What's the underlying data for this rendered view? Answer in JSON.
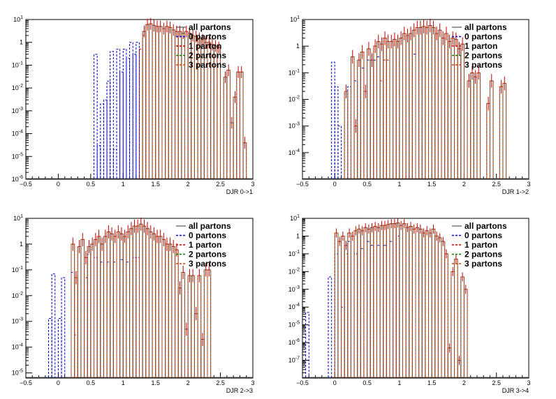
{
  "chart_data": [
    {
      "type": "histogram",
      "xlabel": "DJR 0->1",
      "xlim": [
        -0.5,
        3
      ],
      "log_y": true,
      "ylim_exp": [
        -6,
        1
      ],
      "x_ticks": [
        "−0.5",
        "0",
        "0.5",
        "1",
        "1.5",
        "2",
        "2.5",
        "3"
      ],
      "y_ticks": [
        {
          "base": "10",
          "exp": "1"
        },
        {
          "base": "1",
          "exp": ""
        },
        {
          "base": "10",
          "exp": "-1"
        },
        {
          "base": "10",
          "exp": "-2"
        },
        {
          "base": "10",
          "exp": "-3"
        },
        {
          "base": "10",
          "exp": "-4"
        },
        {
          "base": "10",
          "exp": "-5"
        },
        {
          "base": "10",
          "exp": "-6"
        }
      ],
      "legend": [
        "all partons",
        "0 partons",
        "1 parton",
        "2 partons",
        "3 partons"
      ],
      "legend_position": "top-right",
      "bin_width": 0.05,
      "all_partons": [
        [
          1.3,
          3.0
        ],
        [
          1.35,
          6.0
        ],
        [
          1.4,
          6.5
        ],
        [
          1.45,
          5.5
        ],
        [
          1.5,
          5.0
        ],
        [
          1.55,
          5.0
        ],
        [
          1.6,
          4.0
        ],
        [
          1.65,
          5.0
        ],
        [
          1.7,
          4.5
        ],
        [
          1.75,
          3.5
        ],
        [
          1.8,
          3.0
        ],
        [
          1.85,
          3.0
        ],
        [
          1.9,
          2.5
        ],
        [
          1.95,
          3.0
        ],
        [
          2.0,
          2.5
        ],
        [
          2.05,
          2.0
        ],
        [
          2.1,
          1.8
        ],
        [
          2.15,
          1.5
        ],
        [
          2.2,
          1.3
        ],
        [
          2.25,
          1.0
        ],
        [
          2.3,
          1.0
        ],
        [
          2.35,
          0.8
        ],
        [
          2.4,
          0.7
        ],
        [
          2.45,
          0.6
        ],
        [
          2.55,
          0.03
        ],
        [
          2.6,
          0.06
        ],
        [
          2.65,
          0.0003
        ],
        [
          2.7,
          0.004
        ],
        [
          2.75,
          0.05
        ],
        [
          2.8,
          0.05
        ],
        [
          2.85,
          4e-05
        ]
      ],
      "zero_partons": [
        [
          0.55,
          0.3
        ],
        [
          0.6,
          3e-05
        ],
        [
          0.65,
          0.002
        ],
        [
          0.7,
          0.003
        ],
        [
          0.75,
          0.02
        ],
        [
          0.8,
          0.4
        ],
        [
          0.85,
          2e-05
        ],
        [
          0.9,
          0.5
        ],
        [
          0.95,
          0.05
        ],
        [
          1.0,
          0.5
        ],
        [
          1.05,
          0.2
        ],
        [
          1.1,
          1.0
        ],
        [
          1.15,
          0.3
        ],
        [
          1.2,
          1.0
        ]
      ],
      "one_parton": [
        [
          1.25,
          0.5
        ],
        [
          1.3,
          2.0
        ]
      ]
    },
    {
      "type": "histogram",
      "xlabel": "DJR 1->2",
      "xlim": [
        -0.5,
        3
      ],
      "log_y": true,
      "ylim_exp": [
        -5,
        1
      ],
      "x_ticks": [
        "−0.5",
        "0",
        "0.5",
        "1",
        "1.5",
        "2",
        "2.5",
        "3"
      ],
      "y_ticks": [
        {
          "base": "10",
          "exp": "1"
        },
        {
          "base": "1",
          "exp": ""
        },
        {
          "base": "10",
          "exp": "-1"
        },
        {
          "base": "10",
          "exp": "-2"
        },
        {
          "base": "10",
          "exp": "-3"
        },
        {
          "base": "10",
          "exp": "-4"
        }
      ],
      "legend": [
        "all partons",
        "0 partons",
        "1 parton",
        "2 partons",
        "3 partons"
      ],
      "legend_position": "top-right",
      "bin_width": 0.05,
      "all_partons": [
        [
          0.15,
          0.02
        ],
        [
          0.25,
          0.4
        ],
        [
          0.3,
          0.001
        ],
        [
          0.35,
          0.3
        ],
        [
          0.4,
          0.6
        ],
        [
          0.45,
          0.02
        ],
        [
          0.5,
          0.8
        ],
        [
          0.55,
          0.3
        ],
        [
          0.6,
          1.0
        ],
        [
          0.65,
          1.5
        ],
        [
          0.7,
          1.2
        ],
        [
          0.75,
          2.0
        ],
        [
          0.8,
          1.5
        ],
        [
          0.85,
          1.5
        ],
        [
          0.9,
          1.8
        ],
        [
          0.95,
          1.5
        ],
        [
          1.0,
          2.0
        ],
        [
          1.05,
          3.0
        ],
        [
          1.1,
          2.5
        ],
        [
          1.15,
          3.0
        ],
        [
          1.2,
          4.0
        ],
        [
          1.25,
          5.0
        ],
        [
          1.3,
          5.0
        ],
        [
          1.35,
          5.5
        ],
        [
          1.4,
          5.0
        ],
        [
          1.45,
          6.0
        ],
        [
          1.5,
          5.0
        ],
        [
          1.55,
          3.0
        ],
        [
          1.6,
          4.0
        ],
        [
          1.65,
          2.0
        ],
        [
          1.7,
          3.0
        ],
        [
          1.75,
          1.5
        ],
        [
          1.8,
          2.0
        ],
        [
          1.85,
          1.8
        ],
        [
          1.9,
          0.8
        ],
        [
          1.95,
          1.2
        ],
        [
          2.05,
          0.05
        ],
        [
          2.1,
          0.1
        ],
        [
          2.15,
          0.07
        ],
        [
          2.2,
          0.1
        ],
        [
          2.35,
          0.007
        ],
        [
          2.4,
          0.05
        ],
        [
          2.55,
          0.03
        ],
        [
          2.6,
          0.04
        ]
      ],
      "zero_partons": [
        [
          -0.05,
          0.25
        ],
        [
          0.0,
          0.03
        ],
        [
          0.05,
          0.001
        ],
        [
          0.2,
          0.03
        ],
        [
          0.3,
          0.05
        ],
        [
          0.4,
          0.15
        ],
        [
          0.5,
          0.3
        ],
        [
          0.6,
          0.3
        ],
        [
          0.65,
          0.4
        ],
        [
          1.2,
          0.5
        ]
      ],
      "one_parton": [
        [
          0.7,
          0.05
        ],
        [
          0.75,
          0.3
        ],
        [
          0.8,
          0.3
        ]
      ]
    },
    {
      "type": "histogram",
      "xlabel": "DJR 2->3",
      "xlim": [
        -0.5,
        3
      ],
      "log_y": true,
      "ylim_exp": [
        -5.2,
        1
      ],
      "x_ticks": [
        "−0.5",
        "0",
        "0.5",
        "1",
        "1.5",
        "2",
        "2.5",
        "3"
      ],
      "y_ticks": [
        {
          "base": "10",
          "exp": "1"
        },
        {
          "base": "1",
          "exp": ""
        },
        {
          "base": "10",
          "exp": "-1"
        },
        {
          "base": "10",
          "exp": "-2"
        },
        {
          "base": "10",
          "exp": "-3"
        },
        {
          "base": "10",
          "exp": "-4"
        },
        {
          "base": "10",
          "exp": "-5"
        }
      ],
      "legend": [
        "all partons",
        "0 partons",
        "1 parton",
        "2 partons",
        "3 partons"
      ],
      "legend_position": "top-right",
      "bin_width": 0.05,
      "all_partons": [
        [
          0.2,
          1.0
        ],
        [
          0.25,
          0.05
        ],
        [
          0.3,
          0.8
        ],
        [
          0.35,
          1.5
        ],
        [
          0.4,
          0.3
        ],
        [
          0.45,
          0.8
        ],
        [
          0.5,
          1.0
        ],
        [
          0.55,
          1.5
        ],
        [
          0.6,
          2.0
        ],
        [
          0.65,
          1.0
        ],
        [
          0.7,
          2.0
        ],
        [
          0.75,
          3.0
        ],
        [
          0.8,
          2.5
        ],
        [
          0.85,
          2.0
        ],
        [
          0.9,
          3.0
        ],
        [
          0.95,
          2.5
        ],
        [
          1.0,
          2.0
        ],
        [
          1.05,
          3.0
        ],
        [
          1.1,
          4.0
        ],
        [
          1.15,
          5.0
        ],
        [
          1.2,
          5.0
        ],
        [
          1.25,
          6.0
        ],
        [
          1.3,
          5.0
        ],
        [
          1.35,
          4.0
        ],
        [
          1.4,
          3.0
        ],
        [
          1.45,
          2.5
        ],
        [
          1.5,
          2.0
        ],
        [
          1.55,
          2.0
        ],
        [
          1.6,
          1.5
        ],
        [
          1.65,
          1.0
        ],
        [
          1.7,
          1.0
        ],
        [
          1.75,
          0.8
        ],
        [
          1.8,
          0.6
        ],
        [
          1.85,
          0.02
        ],
        [
          1.9,
          0.08
        ],
        [
          1.95,
          0.0005
        ],
        [
          2.0,
          0.06
        ],
        [
          2.05,
          0.06
        ],
        [
          2.1,
          0.002
        ],
        [
          2.15,
          0.06
        ],
        [
          2.2,
          0.0002
        ],
        [
          2.25,
          0.1
        ],
        [
          2.3,
          0.1
        ]
      ],
      "zero_partons": [
        [
          -0.15,
          0.0013
        ],
        [
          0.0,
          0.0013
        ],
        [
          -0.1,
          0.07
        ],
        [
          0.05,
          0.05
        ],
        [
          0.2,
          0.08
        ],
        [
          0.45,
          0.4
        ],
        [
          0.55,
          0.3
        ],
        [
          0.65,
          0.2
        ],
        [
          0.75,
          0.2
        ],
        [
          0.85,
          0.2
        ],
        [
          0.95,
          0.25
        ],
        [
          1.05,
          0.2
        ],
        [
          1.15,
          0.3
        ],
        [
          1.2,
          0.3
        ]
      ],
      "one_parton": [
        [
          0.25,
          0.0003
        ],
        [
          0.4,
          0.05
        ]
      ]
    },
    {
      "type": "histogram",
      "xlabel": "DJR 3->4",
      "xlim": [
        -0.5,
        3
      ],
      "log_y": true,
      "ylim_exp": [
        -8,
        1
      ],
      "x_ticks": [
        "−0.5",
        "0",
        "0.5",
        "1",
        "1.5",
        "2",
        "2.5",
        "3"
      ],
      "y_ticks": [
        {
          "base": "10",
          "exp": "1"
        },
        {
          "base": "1",
          "exp": ""
        },
        {
          "base": "10",
          "exp": "-1"
        },
        {
          "base": "10",
          "exp": "-2"
        },
        {
          "base": "10",
          "exp": "-3"
        },
        {
          "base": "10",
          "exp": "-4"
        },
        {
          "base": "10",
          "exp": "-5"
        },
        {
          "base": "10",
          "exp": "-6"
        },
        {
          "base": "10",
          "exp": "-7"
        }
      ],
      "legend": [
        "all partons",
        "0 partons",
        "1 parton",
        "2 partons",
        "3 partons"
      ],
      "legend_position": "top-right",
      "bin_width": 0.05,
      "all_partons": [
        [
          0.0,
          1.5
        ],
        [
          0.05,
          0.5
        ],
        [
          0.1,
          1.0
        ],
        [
          0.15,
          0.3
        ],
        [
          0.2,
          1.5
        ],
        [
          0.25,
          1.0
        ],
        [
          0.3,
          2.0
        ],
        [
          0.35,
          2.5
        ],
        [
          0.4,
          2.0
        ],
        [
          0.45,
          3.0
        ],
        [
          0.5,
          2.5
        ],
        [
          0.55,
          3.0
        ],
        [
          0.6,
          3.5
        ],
        [
          0.65,
          3.0
        ],
        [
          0.7,
          4.0
        ],
        [
          0.75,
          4.0
        ],
        [
          0.8,
          4.5
        ],
        [
          0.85,
          5.0
        ],
        [
          0.9,
          5.0
        ],
        [
          0.95,
          5.5
        ],
        [
          1.0,
          4.0
        ],
        [
          1.05,
          5.0
        ],
        [
          1.1,
          3.0
        ],
        [
          1.15,
          3.5
        ],
        [
          1.2,
          2.5
        ],
        [
          1.25,
          3.0
        ],
        [
          1.3,
          2.5
        ],
        [
          1.35,
          1.5
        ],
        [
          1.4,
          2.0
        ],
        [
          1.45,
          1.5
        ],
        [
          1.5,
          2.5
        ],
        [
          1.55,
          1.0
        ],
        [
          1.6,
          0.8
        ],
        [
          1.65,
          0.5
        ],
        [
          1.7,
          0.1
        ],
        [
          1.75,
          5e-07
        ],
        [
          1.8,
          0.01
        ],
        [
          1.85,
          0.05
        ],
        [
          1.9,
          1e-07
        ],
        [
          1.95,
          0.005
        ],
        [
          2.0,
          0.001
        ]
      ],
      "zero_partons": [
        [
          -0.45,
          5e-05
        ],
        [
          -0.1,
          0.005
        ],
        [
          0.0,
          0.1
        ],
        [
          0.1,
          0.0001
        ],
        [
          0.2,
          0.5
        ],
        [
          0.3,
          0.1
        ],
        [
          0.4,
          0.2
        ],
        [
          0.5,
          0.5
        ],
        [
          0.55,
          0.3
        ],
        [
          0.65,
          0.3
        ],
        [
          0.75,
          0.3
        ],
        [
          0.85,
          0.5
        ],
        [
          0.95,
          1.0
        ]
      ],
      "one_parton": [
        [
          0.05,
          0.5
        ],
        [
          0.15,
          0.1
        ]
      ]
    }
  ],
  "colors": {
    "all_partons": "#555555",
    "zero_partons": "#0000cc",
    "one_parton": "#cc0000",
    "two_partons": "#008000",
    "three_partons": "#cc4400",
    "frame": "#000000",
    "error_bar": "#bb0000"
  }
}
